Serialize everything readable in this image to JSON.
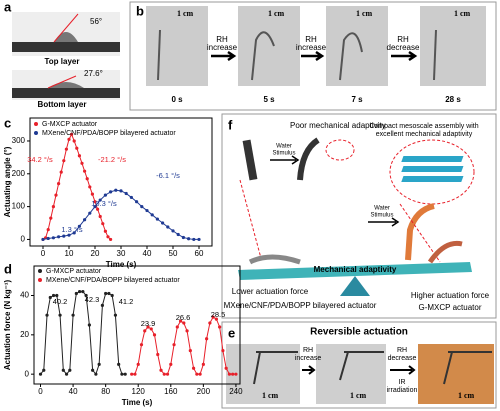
{
  "panels": {
    "a": {
      "letter": "a",
      "top_angle": "56°",
      "top_label": "Top layer",
      "bottom_angle": "27.6°",
      "bottom_label": "Bottom layer"
    },
    "b": {
      "letter": "b",
      "scale": [
        "1 cm",
        "1 cm",
        "1 cm",
        "1 cm"
      ],
      "arrows": [
        [
          "RH",
          "increase"
        ],
        [
          "RH",
          "increase"
        ],
        [
          "RH",
          "decrease"
        ]
      ],
      "times": [
        "0 s",
        "5 s",
        "7 s",
        "28 s"
      ]
    },
    "e": {
      "letter": "e",
      "title": "Reversible actuation",
      "step1": [
        "RH",
        "increase"
      ],
      "step2": [
        "RH",
        "decrease",
        "IR",
        "irradiation"
      ],
      "scale": [
        "1 cm",
        "1 cm",
        "1 cm"
      ]
    },
    "f": {
      "letter": "f",
      "poor": "Poor mechanical adaptivity",
      "stimulus": [
        "Water",
        "Stimulus"
      ],
      "stimulus2": [
        "Water",
        "Stimulus"
      ],
      "compact": [
        "Compact mesoscale assembly with",
        "excellent mechanical adaptivity"
      ],
      "beam": "Mechanical adaptivity",
      "lower": "Lower actuation force",
      "lower_name": "MXene/CNF/PDA/BOPP bilayered actuator",
      "higher": "Higher actuation force",
      "higher_name": "G-MXCP actuator"
    }
  },
  "chart_data": [
    {
      "type": "line",
      "letter": "c",
      "xlabel": "Time (s)",
      "ylabel": "Actuating angle (°)",
      "xlim": [
        -5,
        65
      ],
      "ylim": [
        -20,
        370
      ],
      "xticks": [
        0,
        10,
        20,
        30,
        40,
        50,
        60
      ],
      "yticks": [
        0,
        100,
        200,
        300
      ],
      "annotations": [
        {
          "text": "34.2 °/s",
          "color": "#e8202a"
        },
        {
          "text": "-21.2 °/s",
          "color": "#e8202a"
        },
        {
          "text": "10.3 °/s",
          "color": "#1f3a93"
        },
        {
          "text": "-6.1 °/s",
          "color": "#1f3a93"
        },
        {
          "text": "1.3 °/s",
          "color": "#1f3a93"
        }
      ],
      "series": [
        {
          "name": "G-MXCP actuator",
          "color": "#e8202a",
          "x": [
            0,
            1,
            2,
            3,
            4,
            5,
            6,
            7,
            8,
            9,
            10,
            11,
            12,
            13,
            14,
            15,
            16,
            17,
            18,
            19,
            20,
            21,
            22,
            23,
            24,
            25,
            26
          ],
          "values": [
            0,
            5,
            30,
            65,
            100,
            135,
            170,
            205,
            240,
            275,
            305,
            320,
            300,
            278,
            255,
            232,
            208,
            185,
            160,
            138,
            115,
            92,
            70,
            48,
            25,
            8,
            0
          ]
        },
        {
          "name": "MXene/CNF/PDA/BOPP bilayered actuator",
          "color": "#1f3a93",
          "x": [
            0,
            2,
            4,
            6,
            8,
            10,
            12,
            14,
            16,
            18,
            20,
            22,
            24,
            26,
            28,
            30,
            32,
            34,
            36,
            38,
            40,
            42,
            44,
            46,
            48,
            50,
            52,
            54,
            56,
            58,
            60
          ],
          "values": [
            0,
            3,
            5,
            8,
            10,
            13,
            20,
            40,
            60,
            80,
            100,
            120,
            135,
            145,
            150,
            148,
            140,
            128,
            115,
            100,
            88,
            75,
            62,
            50,
            38,
            26,
            15,
            6,
            2,
            0,
            0
          ]
        }
      ]
    },
    {
      "type": "line",
      "letter": "d",
      "xlabel": "Time (s)",
      "ylabel": "Actuation force (N kg⁻¹)",
      "xlim": [
        -8,
        245
      ],
      "ylim": [
        -5,
        55
      ],
      "xticks": [
        0,
        40,
        80,
        120,
        160,
        200,
        240
      ],
      "yticks": [
        0,
        20,
        40
      ],
      "annotations": [
        {
          "text": "40.2",
          "color": "#000"
        },
        {
          "text": "42.3",
          "color": "#000"
        },
        {
          "text": "41.2",
          "color": "#000"
        },
        {
          "text": "23.9",
          "color": "#000"
        },
        {
          "text": "26.6",
          "color": "#000"
        },
        {
          "text": "28.5",
          "color": "#000"
        }
      ],
      "series": [
        {
          "name": "G-MXCP actuator",
          "color": "#222222",
          "x": [
            0,
            4,
            8,
            12,
            16,
            20,
            24,
            28,
            32,
            36,
            40,
            44,
            48,
            52,
            56,
            60,
            64,
            68,
            72,
            76,
            80,
            84,
            88,
            92,
            96,
            100,
            104
          ],
          "values": [
            0,
            2,
            30,
            39,
            40,
            40,
            30,
            2,
            0,
            2,
            30,
            41,
            42,
            42,
            40,
            25,
            2,
            0,
            5,
            35,
            41,
            41,
            40,
            30,
            5,
            0,
            0
          ]
        },
        {
          "name": "MXene/CNF/PDA/BOPP bilayered actuator",
          "color": "#e8202a",
          "x": [
            112,
            116,
            120,
            124,
            128,
            132,
            136,
            140,
            144,
            148,
            152,
            156,
            160,
            164,
            168,
            172,
            176,
            180,
            184,
            188,
            192,
            196,
            200,
            204,
            208,
            212,
            216,
            220,
            224,
            228,
            232,
            236,
            240
          ],
          "values": [
            0,
            0,
            5,
            15,
            22,
            24,
            23,
            20,
            10,
            2,
            0,
            0,
            5,
            15,
            24,
            27,
            26,
            22,
            12,
            3,
            0,
            0,
            5,
            18,
            26,
            29,
            28,
            24,
            12,
            3,
            0,
            0,
            0
          ]
        }
      ]
    }
  ]
}
